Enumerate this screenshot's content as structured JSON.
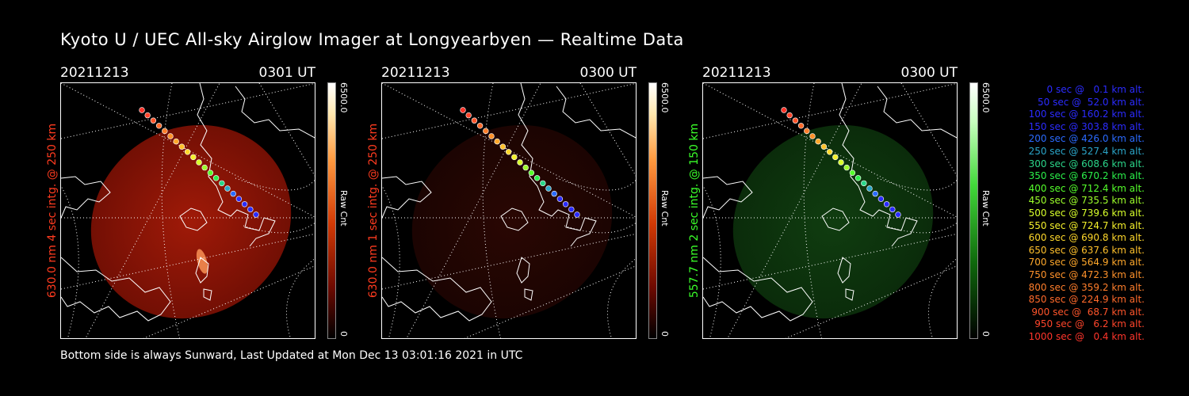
{
  "title": "Kyoto U / UEC All-sky Airglow Imager at Longyearbyen — Realtime Data",
  "footer": "Bottom side is always Sunward, Last Updated at Mon Dec 13 03:01:16 2021 in UTC",
  "panels": [
    {
      "date": "20211213",
      "time": "0301 UT",
      "ylabel": "630.0 nm  4 sec intg. @ 250 km",
      "label_color": "#ff3b1f",
      "cbar_max": "6500.0",
      "cbar_unit": "Raw Cnt",
      "cbar_min": "0",
      "theme": "red-bright"
    },
    {
      "date": "20211213",
      "time": "0300 UT",
      "ylabel": "630.0 nm  1 sec intg. @ 250 km",
      "label_color": "#ff3b1f",
      "cbar_max": "6500.0",
      "cbar_unit": "Raw Cnt",
      "cbar_min": "0",
      "theme": "red-dim"
    },
    {
      "date": "20211213",
      "time": "0300 UT",
      "ylabel": "557.7 nm  2 sec intg. @ 150 km",
      "label_color": "#3bff2a",
      "cbar_max": "6500.0",
      "cbar_unit": "Raw Cnt",
      "cbar_min": "0",
      "theme": "green"
    }
  ],
  "legend": [
    {
      "text": "0 sec @   0.1 km alt.",
      "color": "#2b2bff"
    },
    {
      "text": "50 sec @  52.0 km alt.",
      "color": "#2b2bff"
    },
    {
      "text": "100 sec @ 160.2 km alt.",
      "color": "#2b2bff"
    },
    {
      "text": "150 sec @ 303.8 km alt.",
      "color": "#2b2bff"
    },
    {
      "text": "200 sec @ 426.0 km alt.",
      "color": "#2b6bff"
    },
    {
      "text": "250 sec @ 527.4 km alt.",
      "color": "#2ba5c8"
    },
    {
      "text": "300 sec @ 608.6 km alt.",
      "color": "#2bd68a"
    },
    {
      "text": "350 sec @ 670.2 km alt.",
      "color": "#2bf04a"
    },
    {
      "text": "400 sec @ 712.4 km alt.",
      "color": "#55ff2b"
    },
    {
      "text": "450 sec @ 735.5 km alt.",
      "color": "#9dff2b"
    },
    {
      "text": "500 sec @ 739.6 km alt.",
      "color": "#d8ff2b"
    },
    {
      "text": "550 sec @ 724.7 km alt.",
      "color": "#f4f02b"
    },
    {
      "text": "600 sec @ 690.8 km alt.",
      "color": "#ffd82b"
    },
    {
      "text": "650 sec @ 637.6 km alt.",
      "color": "#ffc02b"
    },
    {
      "text": "700 sec @ 564.9 km alt.",
      "color": "#ffa82b"
    },
    {
      "text": "750 sec @ 472.3 km alt.",
      "color": "#ff922b"
    },
    {
      "text": "800 sec @ 359.2 km alt.",
      "color": "#ff7e2b"
    },
    {
      "text": "850 sec @ 224.9 km alt.",
      "color": "#ff6a2b"
    },
    {
      "text": "900 sec @  68.7 km alt.",
      "color": "#ff552b"
    },
    {
      "text": "950 sec @   6.2 km alt.",
      "color": "#ff452b"
    },
    {
      "text": "1000 sec @   0.4 km alt.",
      "color": "#ff352b"
    }
  ]
}
